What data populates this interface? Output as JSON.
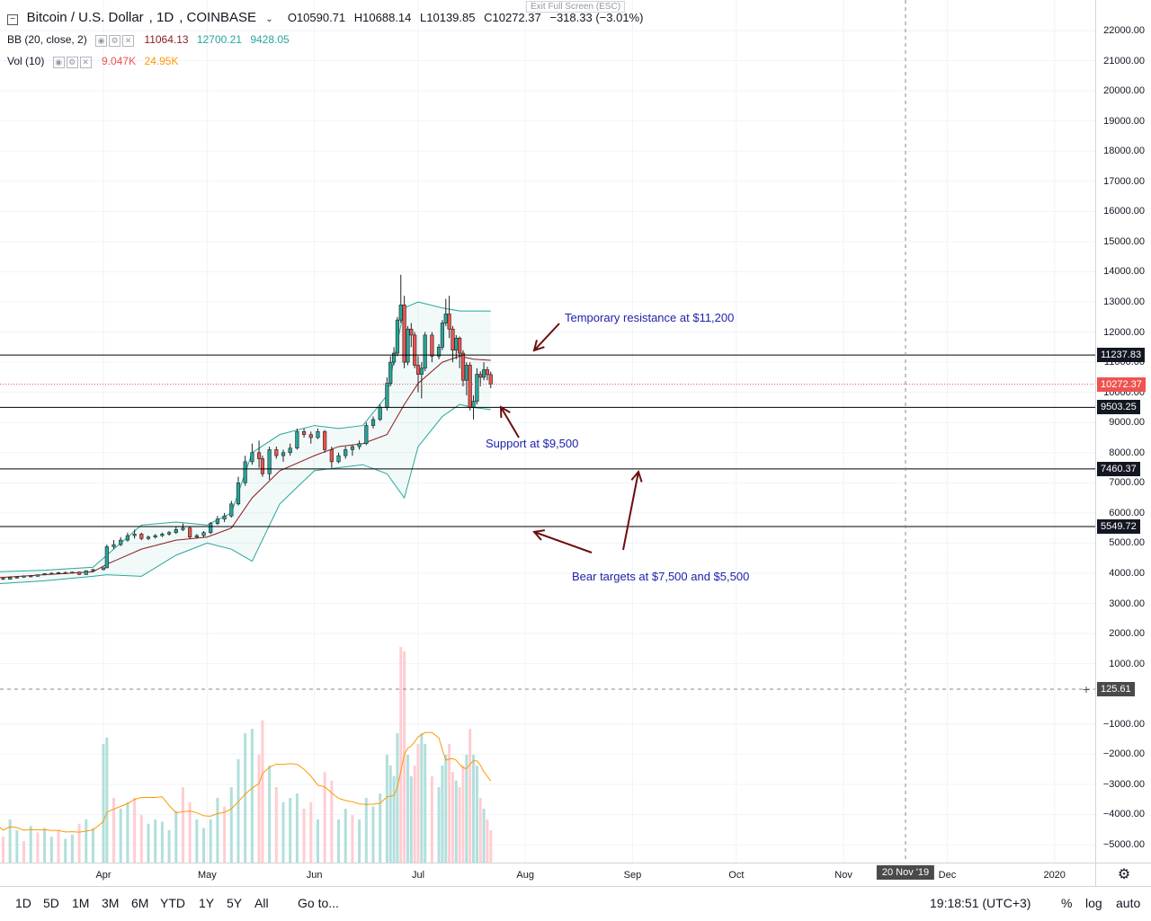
{
  "header": {
    "symbol": "Bitcoin / U.S. Dollar",
    "interval": "1D",
    "exchange": "COINBASE",
    "open": "O10590.71",
    "high": "H10688.14",
    "low": "L10139.85",
    "close": "C10272.37",
    "change": "−318.33 (−3.01%)"
  },
  "exit_fullscreen": "Exit Full Screen (ESC)",
  "indicators": {
    "bb": {
      "label": "BB (20, close, 2)",
      "basis": "11064.13",
      "upper": "12700.21",
      "lower": "9428.05"
    },
    "vol": {
      "label": "Vol (10)",
      "volume": "9.047K",
      "ma": "24.95K"
    }
  },
  "price_axis": {
    "ticks": [
      "22000.00",
      "21000.00",
      "20000.00",
      "19000.00",
      "18000.00",
      "17000.00",
      "16000.00",
      "15000.00",
      "14000.00",
      "13000.00",
      "12000.00",
      "11000.00",
      "10000.00",
      "9000.00",
      "8000.00",
      "7000.00",
      "6000.00",
      "5000.00",
      "4000.00",
      "3000.00",
      "2000.00",
      "1000.00",
      "−1000.00",
      "−2000.00",
      "−3000.00",
      "−4000.00",
      "−5000.00"
    ],
    "badges": {
      "resistance": "11237.83",
      "last_price": "10272.37",
      "support": "9503.25",
      "target1": "7460.37",
      "target2": "5549.72",
      "crosshair": "125.61"
    }
  },
  "time_axis": {
    "labels": [
      "Apr",
      "May",
      "Jun",
      "Jul",
      "Aug",
      "Sep",
      "Oct",
      "Nov",
      "Dec",
      "2020"
    ],
    "crosshair_date": "20 Nov '19"
  },
  "annotations": {
    "resistance": "Temporary resistance at $11,200",
    "support": "Support at $9,500",
    "bear": "Bear targets at $7,500 and $5,500"
  },
  "bottom_bar": {
    "ranges": [
      "1D",
      "5D",
      "1M",
      "3M",
      "6M",
      "YTD",
      "1Y",
      "5Y",
      "All"
    ],
    "goto": "Go to...",
    "clock": "19:18:51 (UTC+3)",
    "percent": "%",
    "log": "log",
    "auto": "auto"
  },
  "colors": {
    "up": "#26a69a",
    "down": "#ef5350",
    "bb_band": "#26a69a",
    "bb_basis": "#8b1a1a",
    "vol_up": "#b2dfdb",
    "vol_down": "#ffcdd2",
    "vol_ma": "#ff9800",
    "annotation": "#1e22aa",
    "arrow": "#6b0f0f"
  },
  "chart_data": {
    "type": "candlestick",
    "ylim": [
      -5500,
      22500
    ],
    "time_range": [
      "2019-03-01",
      "2020-01-15"
    ],
    "horizontal_levels": [
      11237.83,
      9503.25,
      7460.37,
      5549.72
    ],
    "last_price": 10272.37,
    "candles": [
      [
        "2019-03-01",
        3820,
        3860,
        3800,
        3830
      ],
      [
        "2019-03-03",
        3830,
        3850,
        3780,
        3800
      ],
      [
        "2019-03-05",
        3800,
        3880,
        3790,
        3860
      ],
      [
        "2019-03-07",
        3860,
        3900,
        3840,
        3870
      ],
      [
        "2019-03-09",
        3870,
        3930,
        3850,
        3910
      ],
      [
        "2019-03-11",
        3910,
        3940,
        3880,
        3900
      ],
      [
        "2019-03-13",
        3900,
        3960,
        3890,
        3950
      ],
      [
        "2019-03-15",
        3950,
        4000,
        3930,
        3990
      ],
      [
        "2019-03-17",
        3990,
        4030,
        3960,
        4000
      ],
      [
        "2019-03-19",
        4000,
        4050,
        3980,
        4020
      ],
      [
        "2019-03-21",
        4020,
        4060,
        3990,
        4010
      ],
      [
        "2019-03-23",
        4010,
        4050,
        3990,
        4040
      ],
      [
        "2019-03-25",
        4040,
        4060,
        3940,
        3960
      ],
      [
        "2019-03-27",
        3960,
        4100,
        3950,
        4080
      ],
      [
        "2019-03-29",
        4080,
        4150,
        4060,
        4120
      ],
      [
        "2019-04-01",
        4120,
        4200,
        4100,
        4180
      ],
      [
        "2019-04-02",
        4180,
        4950,
        4170,
        4880
      ],
      [
        "2019-04-04",
        4880,
        5100,
        4800,
        4950
      ],
      [
        "2019-04-06",
        4950,
        5200,
        4900,
        5100
      ],
      [
        "2019-04-08",
        5100,
        5350,
        5050,
        5250
      ],
      [
        "2019-04-10",
        5250,
        5450,
        5150,
        5300
      ],
      [
        "2019-04-12",
        5300,
        5350,
        5100,
        5150
      ],
      [
        "2019-04-14",
        5150,
        5250,
        5100,
        5200
      ],
      [
        "2019-04-16",
        5200,
        5300,
        5150,
        5250
      ],
      [
        "2019-04-18",
        5250,
        5350,
        5200,
        5300
      ],
      [
        "2019-04-20",
        5300,
        5400,
        5250,
        5350
      ],
      [
        "2019-04-22",
        5350,
        5550,
        5300,
        5450
      ],
      [
        "2019-04-24",
        5450,
        5650,
        5400,
        5500
      ],
      [
        "2019-04-26",
        5500,
        5550,
        5150,
        5200
      ],
      [
        "2019-04-28",
        5200,
        5300,
        5150,
        5250
      ],
      [
        "2019-04-30",
        5250,
        5400,
        5200,
        5350
      ],
      [
        "2019-05-02",
        5350,
        5700,
        5300,
        5650
      ],
      [
        "2019-05-04",
        5650,
        5900,
        5600,
        5800
      ],
      [
        "2019-05-06",
        5800,
        6000,
        5700,
        5900
      ],
      [
        "2019-05-08",
        5900,
        6400,
        5850,
        6300
      ],
      [
        "2019-05-10",
        6300,
        7200,
        6250,
        7000
      ],
      [
        "2019-05-12",
        7000,
        7900,
        6900,
        7700
      ],
      [
        "2019-05-14",
        7700,
        8300,
        7600,
        8000
      ],
      [
        "2019-05-16",
        8000,
        8400,
        7500,
        7800
      ],
      [
        "2019-05-17",
        7800,
        7900,
        7200,
        7300
      ],
      [
        "2019-05-19",
        7300,
        8200,
        7100,
        8100
      ],
      [
        "2019-05-21",
        8100,
        8200,
        7800,
        7900
      ],
      [
        "2019-05-23",
        7900,
        8100,
        7700,
        8000
      ],
      [
        "2019-05-25",
        8000,
        8300,
        7900,
        8150
      ],
      [
        "2019-05-27",
        8150,
        8800,
        8100,
        8700
      ],
      [
        "2019-05-29",
        8700,
        8800,
        8500,
        8600
      ],
      [
        "2019-05-31",
        8600,
        8700,
        8300,
        8500
      ],
      [
        "2019-06-02",
        8500,
        8800,
        8450,
        8700
      ],
      [
        "2019-06-04",
        8700,
        8750,
        8000,
        8100
      ],
      [
        "2019-06-06",
        8100,
        8200,
        7500,
        7700
      ],
      [
        "2019-06-08",
        7700,
        8000,
        7650,
        7900
      ],
      [
        "2019-06-10",
        7900,
        8200,
        7800,
        8100
      ],
      [
        "2019-06-12",
        8100,
        8250,
        7900,
        8200
      ],
      [
        "2019-06-14",
        8200,
        8400,
        8100,
        8300
      ],
      [
        "2019-06-16",
        8300,
        9000,
        8250,
        8900
      ],
      [
        "2019-06-18",
        8900,
        9200,
        8800,
        9100
      ],
      [
        "2019-06-20",
        9100,
        9600,
        9050,
        9500
      ],
      [
        "2019-06-22",
        9500,
        10500,
        9400,
        10300
      ],
      [
        "2019-06-23",
        10300,
        11200,
        10200,
        11000
      ],
      [
        "2019-06-24",
        11000,
        11500,
        10900,
        11300
      ],
      [
        "2019-06-25",
        11300,
        12500,
        11200,
        12400
      ],
      [
        "2019-06-26",
        12400,
        13900,
        12300,
        12900
      ],
      [
        "2019-06-27",
        12900,
        13200,
        10800,
        11000
      ],
      [
        "2019-06-28",
        11000,
        12200,
        10900,
        12100
      ],
      [
        "2019-06-29",
        12100,
        12300,
        11500,
        11900
      ],
      [
        "2019-06-30",
        11900,
        12000,
        10800,
        10900
      ],
      [
        "2019-07-01",
        10900,
        11200,
        10000,
        10600
      ],
      [
        "2019-07-02",
        10600,
        11000,
        9800,
        10800
      ],
      [
        "2019-07-03",
        10800,
        12000,
        10700,
        11900
      ],
      [
        "2019-07-05",
        11900,
        12000,
        11000,
        11200
      ],
      [
        "2019-07-07",
        11200,
        11600,
        11100,
        11500
      ],
      [
        "2019-07-08",
        11500,
        12400,
        11400,
        12300
      ],
      [
        "2019-07-09",
        12300,
        13100,
        12200,
        12600
      ],
      [
        "2019-07-10",
        12600,
        13200,
        11800,
        12100
      ],
      [
        "2019-07-11",
        12100,
        12200,
        11000,
        11400
      ],
      [
        "2019-07-12",
        11400,
        11900,
        11100,
        11800
      ],
      [
        "2019-07-13",
        11800,
        11850,
        10800,
        11300
      ],
      [
        "2019-07-14",
        11300,
        11400,
        10200,
        10400
      ],
      [
        "2019-07-15",
        10400,
        11000,
        9900,
        10900
      ],
      [
        "2019-07-16",
        10900,
        11000,
        9400,
        9500
      ],
      [
        "2019-07-17",
        9500,
        9900,
        9100,
        9700
      ],
      [
        "2019-07-18",
        9700,
        10800,
        9600,
        10600
      ],
      [
        "2019-07-19",
        10600,
        10700,
        10200,
        10500
      ],
      [
        "2019-07-20",
        10500,
        11000,
        10400,
        10750
      ],
      [
        "2019-07-21",
        10750,
        10850,
        10400,
        10590
      ],
      [
        "2019-07-22",
        10590,
        10688,
        10139,
        10272
      ]
    ],
    "bollinger": {
      "dates": [
        "2019-03-01",
        "2019-03-15",
        "2019-03-29",
        "2019-04-02",
        "2019-04-12",
        "2019-04-22",
        "2019-05-01",
        "2019-05-08",
        "2019-05-14",
        "2019-05-22",
        "2019-06-01",
        "2019-06-08",
        "2019-06-15",
        "2019-06-22",
        "2019-06-27",
        "2019-07-01",
        "2019-07-08",
        "2019-07-13",
        "2019-07-17",
        "2019-07-22"
      ],
      "upper": [
        4050,
        4100,
        4200,
        4600,
        5600,
        5700,
        5600,
        6000,
        8000,
        8600,
        8900,
        8800,
        8900,
        9900,
        12800,
        13000,
        12800,
        12700,
        12700,
        12700
      ],
      "basis": [
        3850,
        3950,
        4050,
        4300,
        4800,
        5100,
        5200,
        5500,
        6500,
        7400,
        7900,
        8200,
        8300,
        8600,
        9600,
        10300,
        11000,
        11200,
        11100,
        11064
      ],
      "lower": [
        3650,
        3750,
        3900,
        3950,
        3900,
        4600,
        5000,
        4800,
        4400,
        6300,
        7400,
        7500,
        7600,
        7300,
        6500,
        8200,
        9200,
        9600,
        9500,
        9428
      ]
    },
    "volume_overlay": {
      "description_scale": "volume bars drawn in lower pane",
      "bars": [
        [
          "2019-03-01",
          0.18,
          1
        ],
        [
          "2019-03-03",
          0.12,
          0
        ],
        [
          "2019-03-05",
          0.2,
          1
        ],
        [
          "2019-03-07",
          0.15,
          1
        ],
        [
          "2019-03-09",
          0.1,
          0
        ],
        [
          "2019-03-11",
          0.17,
          1
        ],
        [
          "2019-03-13",
          0.14,
          0
        ],
        [
          "2019-03-15",
          0.16,
          1
        ],
        [
          "2019-03-17",
          0.12,
          1
        ],
        [
          "2019-03-19",
          0.15,
          0
        ],
        [
          "2019-03-21",
          0.11,
          1
        ],
        [
          "2019-03-23",
          0.13,
          1
        ],
        [
          "2019-03-25",
          0.18,
          0
        ],
        [
          "2019-03-27",
          0.2,
          1
        ],
        [
          "2019-03-29",
          0.16,
          1
        ],
        [
          "2019-04-01",
          0.55,
          1
        ],
        [
          "2019-04-02",
          0.58,
          1
        ],
        [
          "2019-04-04",
          0.3,
          0
        ],
        [
          "2019-04-06",
          0.25,
          1
        ],
        [
          "2019-04-08",
          0.28,
          1
        ],
        [
          "2019-04-10",
          0.3,
          0
        ],
        [
          "2019-04-12",
          0.22,
          0
        ],
        [
          "2019-04-14",
          0.18,
          1
        ],
        [
          "2019-04-16",
          0.2,
          1
        ],
        [
          "2019-04-18",
          0.19,
          1
        ],
        [
          "2019-04-20",
          0.15,
          1
        ],
        [
          "2019-04-22",
          0.24,
          1
        ],
        [
          "2019-04-24",
          0.35,
          0
        ],
        [
          "2019-04-26",
          0.28,
          0
        ],
        [
          "2019-04-28",
          0.2,
          1
        ],
        [
          "2019-04-30",
          0.16,
          1
        ],
        [
          "2019-05-02",
          0.2,
          1
        ],
        [
          "2019-05-04",
          0.3,
          1
        ],
        [
          "2019-05-06",
          0.26,
          0
        ],
        [
          "2019-05-08",
          0.35,
          1
        ],
        [
          "2019-05-10",
          0.48,
          1
        ],
        [
          "2019-05-12",
          0.6,
          1
        ],
        [
          "2019-05-14",
          0.62,
          1
        ],
        [
          "2019-05-16",
          0.5,
          0
        ],
        [
          "2019-05-17",
          0.66,
          0
        ],
        [
          "2019-05-19",
          0.45,
          1
        ],
        [
          "2019-05-21",
          0.35,
          0
        ],
        [
          "2019-05-23",
          0.28,
          1
        ],
        [
          "2019-05-25",
          0.3,
          1
        ],
        [
          "2019-05-27",
          0.32,
          1
        ],
        [
          "2019-05-29",
          0.25,
          0
        ],
        [
          "2019-05-31",
          0.28,
          0
        ],
        [
          "2019-06-02",
          0.2,
          1
        ],
        [
          "2019-06-04",
          0.42,
          0
        ],
        [
          "2019-06-06",
          0.38,
          0
        ],
        [
          "2019-06-08",
          0.2,
          1
        ],
        [
          "2019-06-10",
          0.25,
          1
        ],
        [
          "2019-06-12",
          0.22,
          0
        ],
        [
          "2019-06-14",
          0.2,
          1
        ],
        [
          "2019-06-16",
          0.3,
          1
        ],
        [
          "2019-06-18",
          0.26,
          1
        ],
        [
          "2019-06-20",
          0.32,
          1
        ],
        [
          "2019-06-22",
          0.5,
          1
        ],
        [
          "2019-06-23",
          0.45,
          1
        ],
        [
          "2019-06-24",
          0.4,
          1
        ],
        [
          "2019-06-25",
          0.6,
          1
        ],
        [
          "2019-06-26",
          1.0,
          0
        ],
        [
          "2019-06-27",
          0.98,
          0
        ],
        [
          "2019-06-28",
          0.5,
          1
        ],
        [
          "2019-06-29",
          0.4,
          1
        ],
        [
          "2019-06-30",
          0.45,
          0
        ],
        [
          "2019-07-01",
          0.55,
          0
        ],
        [
          "2019-07-02",
          0.6,
          1
        ],
        [
          "2019-07-03",
          0.55,
          1
        ],
        [
          "2019-07-05",
          0.4,
          0
        ],
        [
          "2019-07-07",
          0.35,
          1
        ],
        [
          "2019-07-08",
          0.45,
          1
        ],
        [
          "2019-07-09",
          0.5,
          1
        ],
        [
          "2019-07-10",
          0.55,
          0
        ],
        [
          "2019-07-11",
          0.42,
          0
        ],
        [
          "2019-07-12",
          0.38,
          1
        ],
        [
          "2019-07-13",
          0.35,
          0
        ],
        [
          "2019-07-14",
          0.45,
          0
        ],
        [
          "2019-07-15",
          0.5,
          1
        ],
        [
          "2019-07-16",
          0.62,
          0
        ],
        [
          "2019-07-17",
          0.5,
          1
        ],
        [
          "2019-07-18",
          0.45,
          1
        ],
        [
          "2019-07-19",
          0.3,
          0
        ],
        [
          "2019-07-20",
          0.25,
          1
        ],
        [
          "2019-07-21",
          0.2,
          0
        ],
        [
          "2019-07-22",
          0.15,
          0
        ]
      ]
    }
  }
}
